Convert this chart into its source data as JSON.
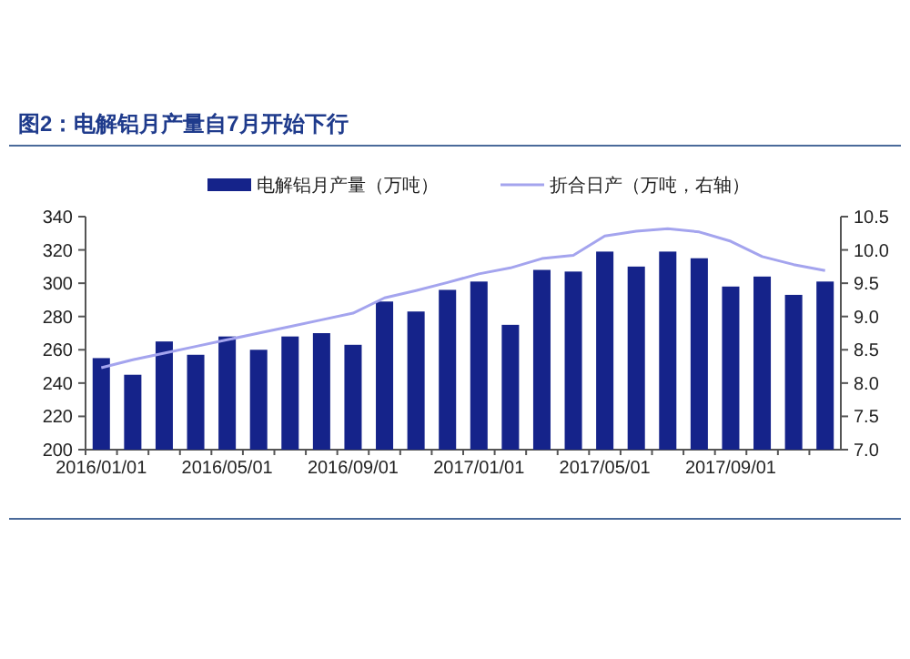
{
  "chart_data": {
    "type": "bar",
    "title": "图2：电解铝月产量自7月开始下行",
    "categories": [
      "2016/01/01",
      null,
      null,
      null,
      "2016/05/01",
      null,
      null,
      null,
      "2016/09/01",
      null,
      null,
      null,
      "2017/01/01",
      null,
      null,
      null,
      "2017/05/01",
      null,
      null,
      null,
      "2017/09/01",
      null,
      null,
      null
    ],
    "series": [
      {
        "name": "电解铝月产量（万吨）",
        "color": "#15238a",
        "values": [
          255,
          245,
          265,
          257,
          268,
          260,
          268,
          270,
          263,
          289,
          283,
          296,
          301,
          275,
          308,
          307,
          319,
          310,
          319,
          315,
          298,
          304,
          293,
          301
        ]
      },
      {
        "name": "折合日产（万吨，右轴）",
        "type": "line",
        "axis": "y2",
        "color": "#a4a4ee",
        "values": [
          8.23,
          8.35,
          8.45,
          8.55,
          8.65,
          8.75,
          8.85,
          8.95,
          9.05,
          9.28,
          9.39,
          9.51,
          9.64,
          9.73,
          9.87,
          9.92,
          10.21,
          10.28,
          10.32,
          10.27,
          10.13,
          9.9,
          9.78,
          9.69
        ]
      }
    ],
    "ylim": [
      200,
      340
    ],
    "yticks": [
      200,
      220,
      240,
      260,
      280,
      300,
      320,
      340
    ],
    "y2lim": [
      7,
      10.5
    ],
    "y2ticks": [
      {
        "value": 7,
        "label": "7.0"
      },
      {
        "value": 7.5,
        "label": "7.5"
      },
      {
        "value": 8,
        "label": "8.0"
      },
      {
        "value": 8.5,
        "label": "8.5"
      },
      {
        "value": 9,
        "label": "9.0"
      },
      {
        "value": 9.5,
        "label": "9.5"
      },
      {
        "value": 10,
        "label": "10.0"
      },
      {
        "value": 10.5,
        "label": "10.5"
      }
    ],
    "legend": "top"
  }
}
